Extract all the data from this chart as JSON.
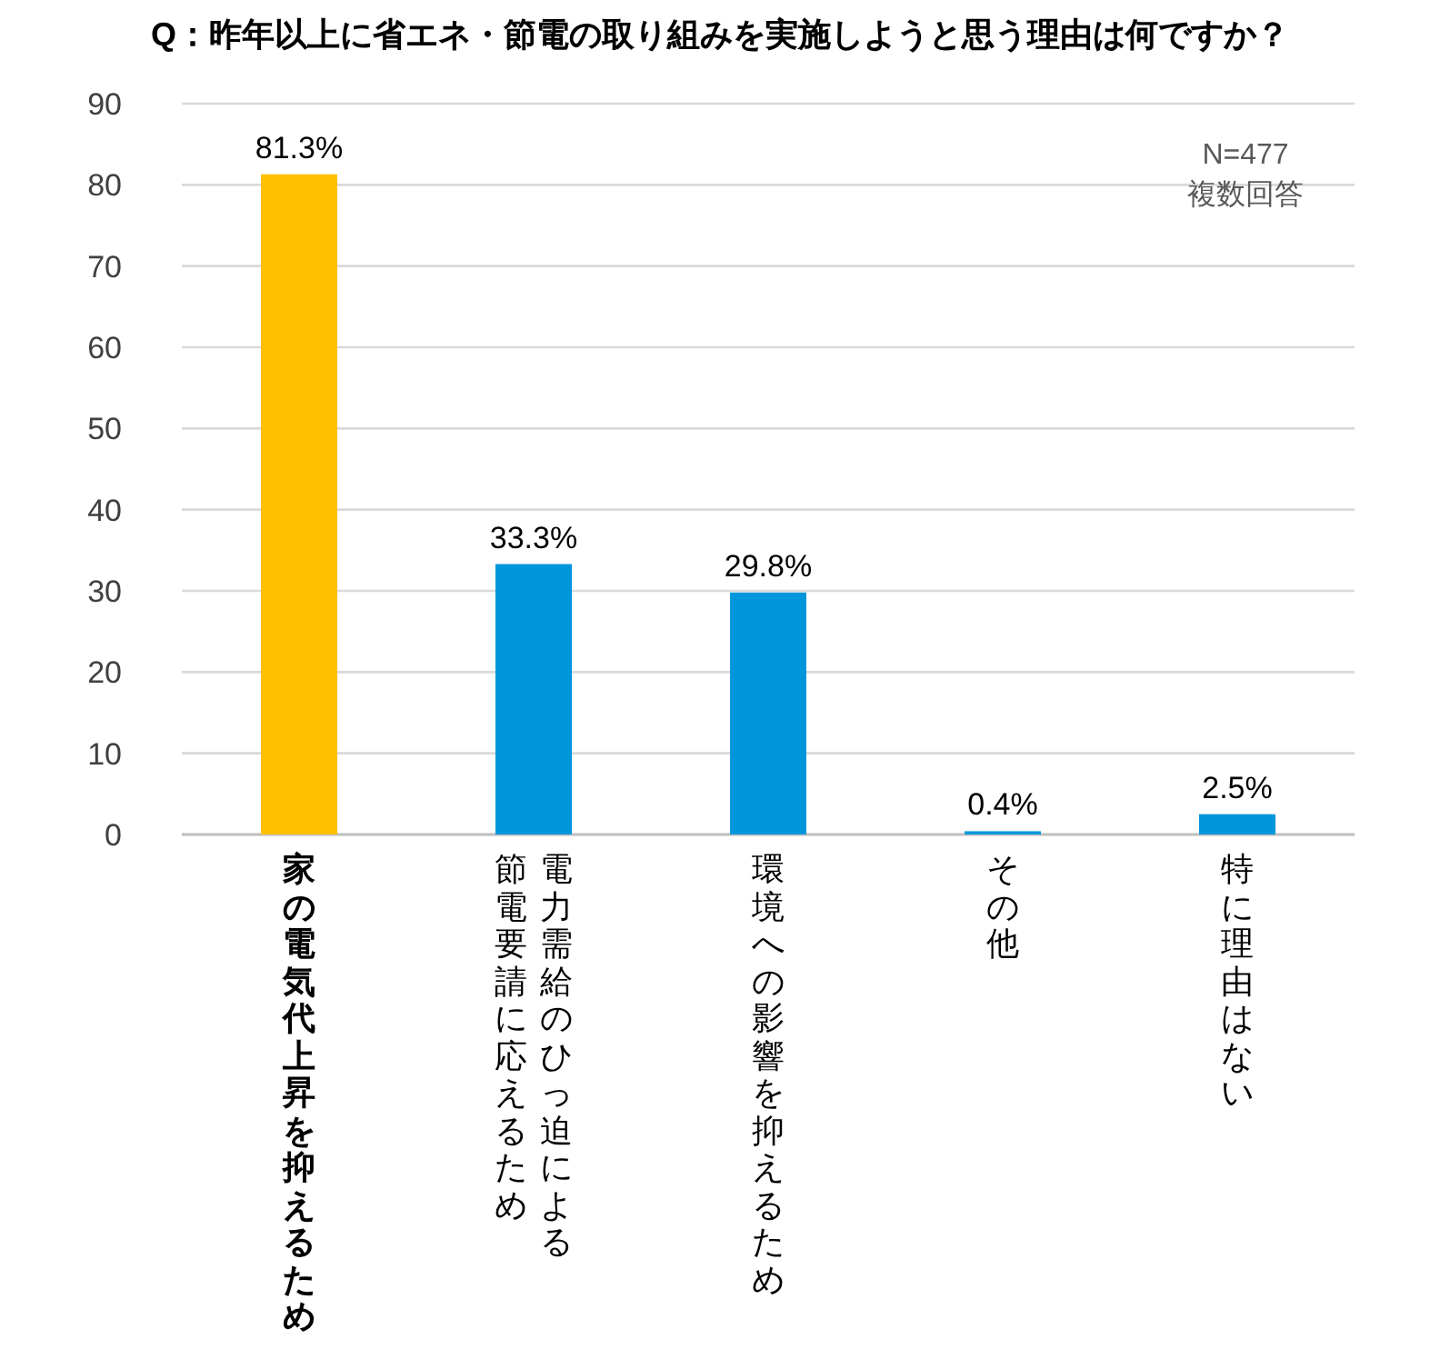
{
  "chart_data": {
    "type": "bar",
    "title": "Q：昨年以上に省エネ・節電の取り組みを実施しようと思う理由は何ですか？",
    "categories": [
      "家の電気代上昇を抑えるため",
      "電力需給のひっ迫による節電要請に応えるため",
      "環境への影響を抑えるため",
      "その他",
      "特に理由はない"
    ],
    "values": [
      81.3,
      33.3,
      29.8,
      0.4,
      2.5
    ],
    "colors": [
      "#ffc000",
      "#0096db",
      "#0096db",
      "#0096db",
      "#0096db"
    ],
    "value_labels": [
      "81.3%",
      "33.3%",
      "29.8%",
      "0.4%",
      "2.5%"
    ],
    "ylim": [
      0,
      90
    ],
    "yticks": [
      0,
      10,
      20,
      30,
      40,
      50,
      60,
      70,
      80,
      90
    ],
    "grid": "y",
    "annotations": [
      "N=477",
      "複数回答"
    ]
  }
}
